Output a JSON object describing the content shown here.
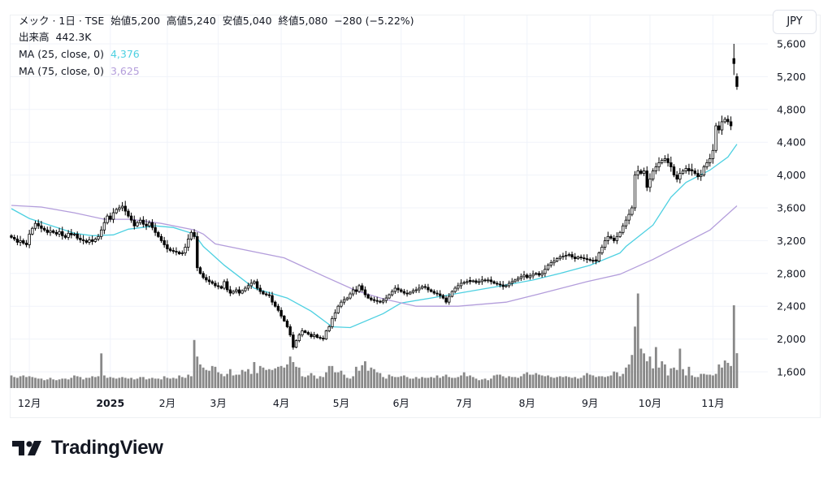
{
  "header": {
    "symbol": "メック",
    "interval": "1日",
    "exchange": "TSE",
    "title_line": "メック · 1日 · TSE",
    "open_label": "始値",
    "open": "5,200",
    "high_label": "高値",
    "high": "5,240",
    "low_label": "安値",
    "low": "5,040",
    "close_label": "終値",
    "close": "5,080",
    "change": "−280 (−5.22%)",
    "volume_label": "出来高",
    "volume": "442.3K",
    "ma25_label": "MA (25, close, 0)",
    "ma25_value": "4,376",
    "ma75_label": "MA (75, close, 0)",
    "ma75_value": "3,625"
  },
  "currency_button": "JPY",
  "logo": {
    "text": "TradingView"
  },
  "colors": {
    "up_body": "#ffffff",
    "down_body": "#000000",
    "candle_border": "#000000",
    "volume": "#888888",
    "ma25": "#4dd0e1",
    "ma75": "#b39ddb",
    "grid": "#f0f3fa"
  },
  "chart_data": {
    "type": "candlestick",
    "title": "",
    "y_ticks": [
      "5,600",
      "5,200",
      "4,800",
      "4,400",
      "4,000",
      "3,600",
      "3,200",
      "2,800",
      "2,400",
      "2,000",
      "1,600"
    ],
    "y_tick_values": [
      5600,
      5200,
      4800,
      4400,
      4000,
      3600,
      3200,
      2800,
      2400,
      2000,
      1600
    ],
    "ylim": [
      1400,
      5700
    ],
    "x_ticks": [
      "12月",
      "2025",
      "2月",
      "3月",
      "4月",
      "5月",
      "6月",
      "7月",
      "8月",
      "9月",
      "10月",
      "11月"
    ],
    "grid": true,
    "last_bar": {
      "open": 5200,
      "high": 5240,
      "low": 5040,
      "close": 5080,
      "volume_k": 442.3
    },
    "close": [
      3240,
      3220,
      3180,
      3200,
      3170,
      3150,
      3280,
      3350,
      3410,
      3380,
      3350,
      3330,
      3300,
      3320,
      3300,
      3280,
      3310,
      3260,
      3240,
      3290,
      3270,
      3280,
      3230,
      3210,
      3200,
      3180,
      3210,
      3190,
      3220,
      3250,
      3330,
      3420,
      3500,
      3460,
      3540,
      3580,
      3600,
      3620,
      3560,
      3500,
      3450,
      3380,
      3420,
      3450,
      3400,
      3380,
      3420,
      3360,
      3300,
      3250,
      3200,
      3150,
      3100,
      3080,
      3070,
      3060,
      3040,
      3050,
      3120,
      3220,
      3300,
      3250,
      2870,
      2800,
      2750,
      2720,
      2700,
      2680,
      2650,
      2640,
      2620,
      2700,
      2600,
      2560,
      2580,
      2600,
      2560,
      2590,
      2620,
      2650,
      2680,
      2700,
      2620,
      2580,
      2550,
      2540,
      2530,
      2450,
      2400,
      2350,
      2280,
      2220,
      2150,
      2050,
      1900,
      1980,
      2050,
      2100,
      2080,
      2060,
      2030,
      2050,
      2020,
      2010,
      2000,
      2100,
      2150,
      2250,
      2320,
      2400,
      2450,
      2480,
      2500,
      2550,
      2600,
      2580,
      2650,
      2600,
      2540,
      2500,
      2480,
      2470,
      2460,
      2450,
      2470,
      2500,
      2540,
      2580,
      2620,
      2600,
      2580,
      2560,
      2550,
      2570,
      2590,
      2600,
      2620,
      2640,
      2630,
      2600,
      2580,
      2560,
      2550,
      2530,
      2500,
      2450,
      2520,
      2580,
      2620,
      2650,
      2680,
      2690,
      2700,
      2700,
      2710,
      2690,
      2700,
      2720,
      2710,
      2720,
      2700,
      2680,
      2670,
      2660,
      2640,
      2650,
      2680,
      2700,
      2720,
      2740,
      2760,
      2780,
      2750,
      2770,
      2790,
      2800,
      2780,
      2800,
      2850,
      2900,
      2930,
      2950,
      2980,
      3000,
      3010,
      3020,
      3030,
      3000,
      2980,
      3000,
      2990,
      2980,
      2970,
      2960,
      2950,
      2950,
      3050,
      3120,
      3200,
      3250,
      3230,
      3200,
      3250,
      3300,
      3380,
      3450,
      3520,
      3600,
      4000,
      4050,
      4020,
      4050,
      3850,
      3950,
      4050,
      4100,
      4150,
      4180,
      4200,
      4150,
      4100,
      4000,
      3950,
      4020,
      4050,
      4080,
      4050,
      4050,
      4020,
      3980,
      4000,
      4100,
      4150,
      4200,
      4300,
      4600,
      4550,
      4650,
      4680,
      4650,
      4600,
      5360,
      5080
    ],
    "volume_k": [
      160,
      140,
      130,
      150,
      160,
      140,
      150,
      140,
      130,
      120,
      120,
      100,
      110,
      130,
      110,
      100,
      110,
      120,
      120,
      110,
      130,
      160,
      150,
      140,
      110,
      130,
      130,
      150,
      140,
      150,
      440,
      160,
      130,
      140,
      130,
      120,
      130,
      140,
      130,
      120,
      130,
      110,
      120,
      140,
      140,
      110,
      120,
      130,
      120,
      120,
      110,
      150,
      130,
      120,
      130,
      120,
      160,
      140,
      130,
      170,
      150,
      610,
      400,
      300,
      260,
      230,
      220,
      280,
      270,
      200,
      180,
      150,
      180,
      240,
      160,
      170,
      170,
      230,
      210,
      240,
      180,
      330,
      190,
      280,
      260,
      230,
      240,
      230,
      250,
      270,
      280,
      260,
      300,
      400,
      330,
      270,
      260,
      150,
      140,
      160,
      190,
      160,
      120,
      150,
      140,
      200,
      280,
      280,
      200,
      200,
      220,
      170,
      130,
      120,
      150,
      270,
      220,
      290,
      340,
      220,
      260,
      240,
      200,
      190,
      140,
      120,
      170,
      150,
      140,
      140,
      150,
      160,
      140,
      120,
      120,
      140,
      120,
      140,
      130,
      130,
      140,
      130,
      160,
      130,
      150,
      170,
      140,
      130,
      130,
      140,
      160,
      200,
      150,
      160,
      140,
      120,
      100,
      110,
      120,
      100,
      120,
      160,
      170,
      170,
      150,
      130,
      150,
      140,
      140,
      130,
      150,
      180,
      200,
      170,
      170,
      190,
      170,
      160,
      150,
      160,
      140,
      130,
      140,
      150,
      140,
      150,
      140,
      130,
      140,
      120,
      130,
      160,
      190,
      170,
      160,
      140,
      150,
      150,
      140,
      150,
      160,
      210,
      200,
      150,
      180,
      260,
      300,
      420,
      780,
      1200,
      500,
      440,
      340,
      400,
      250,
      520,
      260,
      340,
      300,
      160,
      250,
      260,
      230,
      500,
      240,
      160,
      270,
      160,
      140,
      140,
      180,
      180,
      170,
      170,
      160,
      180,
      300,
      260,
      350,
      320,
      280,
      1050,
      442.3
    ],
    "series": [
      {
        "name": "MA (25, close, 0)",
        "points": [
          [
            0,
            3590
          ],
          [
            6,
            3470
          ],
          [
            21,
            3290
          ],
          [
            27,
            3260
          ],
          [
            34,
            3270
          ],
          [
            39,
            3340
          ],
          [
            48,
            3380
          ],
          [
            54,
            3360
          ],
          [
            61,
            3280
          ],
          [
            64,
            3130
          ],
          [
            71,
            2900
          ],
          [
            81,
            2620
          ],
          [
            92,
            2500
          ],
          [
            100,
            2340
          ],
          [
            107,
            2150
          ],
          [
            113,
            2140
          ],
          [
            124,
            2310
          ],
          [
            130,
            2440
          ],
          [
            140,
            2500
          ],
          [
            151,
            2570
          ],
          [
            162,
            2640
          ],
          [
            174,
            2720
          ],
          [
            183,
            2800
          ],
          [
            193,
            2900
          ],
          [
            203,
            3050
          ],
          [
            205,
            3130
          ],
          [
            214,
            3390
          ],
          [
            220,
            3730
          ],
          [
            225,
            3910
          ],
          [
            233,
            4060
          ],
          [
            239,
            4220
          ],
          [
            242,
            4376
          ]
        ]
      },
      {
        "name": "MA (75, close, 0)",
        "points": [
          [
            0,
            3630
          ],
          [
            10,
            3610
          ],
          [
            21,
            3540
          ],
          [
            31,
            3460
          ],
          [
            40,
            3460
          ],
          [
            50,
            3410
          ],
          [
            61,
            3330
          ],
          [
            64,
            3280
          ],
          [
            68,
            3160
          ],
          [
            91,
            2990
          ],
          [
            104,
            2770
          ],
          [
            115,
            2590
          ],
          [
            124,
            2490
          ],
          [
            135,
            2400
          ],
          [
            149,
            2400
          ],
          [
            165,
            2450
          ],
          [
            176,
            2550
          ],
          [
            192,
            2700
          ],
          [
            203,
            2790
          ],
          [
            214,
            2970
          ],
          [
            233,
            3330
          ],
          [
            242,
            3625
          ]
        ]
      }
    ]
  }
}
